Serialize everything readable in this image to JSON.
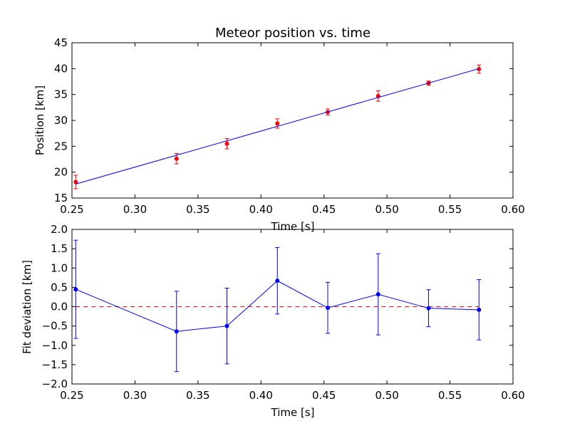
{
  "chart_data": [
    {
      "type": "scatter",
      "title": "Meteor position vs. time",
      "xlabel": "Time [s]",
      "ylabel": "Position [km]",
      "xlim": [
        0.25,
        0.6
      ],
      "ylim": [
        15,
        45
      ],
      "xticks": [
        "0.25",
        "0.30",
        "0.35",
        "0.40",
        "0.45",
        "0.50",
        "0.55",
        "0.60"
      ],
      "yticks": [
        "15",
        "20",
        "25",
        "30",
        "35",
        "40",
        "45"
      ],
      "series": [
        {
          "kind": "errorbar-points",
          "color": "#ff0000",
          "x": [
            0.253,
            0.333,
            0.373,
            0.413,
            0.453,
            0.493,
            0.533,
            0.573
          ],
          "y": [
            18.1,
            22.6,
            25.5,
            29.4,
            31.6,
            34.7,
            37.2,
            39.9
          ],
          "yerr": [
            1.3,
            1.0,
            1.0,
            0.9,
            0.6,
            1.0,
            0.4,
            0.8
          ]
        },
        {
          "kind": "fit-line",
          "color": "#0000ff",
          "x": [
            0.253,
            0.573
          ],
          "y": [
            17.7,
            40.0
          ]
        }
      ]
    },
    {
      "type": "line",
      "title": "",
      "xlabel": "Time [s]",
      "ylabel": "Fit deviation [km]",
      "xlim": [
        0.25,
        0.6
      ],
      "ylim": [
        -2.0,
        2.0
      ],
      "xticks": [
        "0.25",
        "0.30",
        "0.35",
        "0.40",
        "0.45",
        "0.50",
        "0.55",
        "0.60"
      ],
      "yticks": [
        "−2.0",
        "−1.5",
        "−1.0",
        "−0.5",
        "0.0",
        "0.5",
        "1.0",
        "1.5",
        "2.0"
      ],
      "reference_line": {
        "y": 0,
        "color": "#ff0000",
        "style": "dashed"
      },
      "series": [
        {
          "kind": "errorbar-line",
          "color": "#0000ff",
          "x": [
            0.253,
            0.333,
            0.373,
            0.413,
            0.453,
            0.493,
            0.533,
            0.573
          ],
          "y": [
            0.45,
            -0.64,
            -0.5,
            0.67,
            -0.03,
            0.32,
            -0.04,
            -0.08
          ],
          "yerr": [
            1.27,
            1.04,
            0.98,
            0.86,
            0.66,
            1.05,
            0.48,
            0.78
          ]
        }
      ]
    }
  ]
}
